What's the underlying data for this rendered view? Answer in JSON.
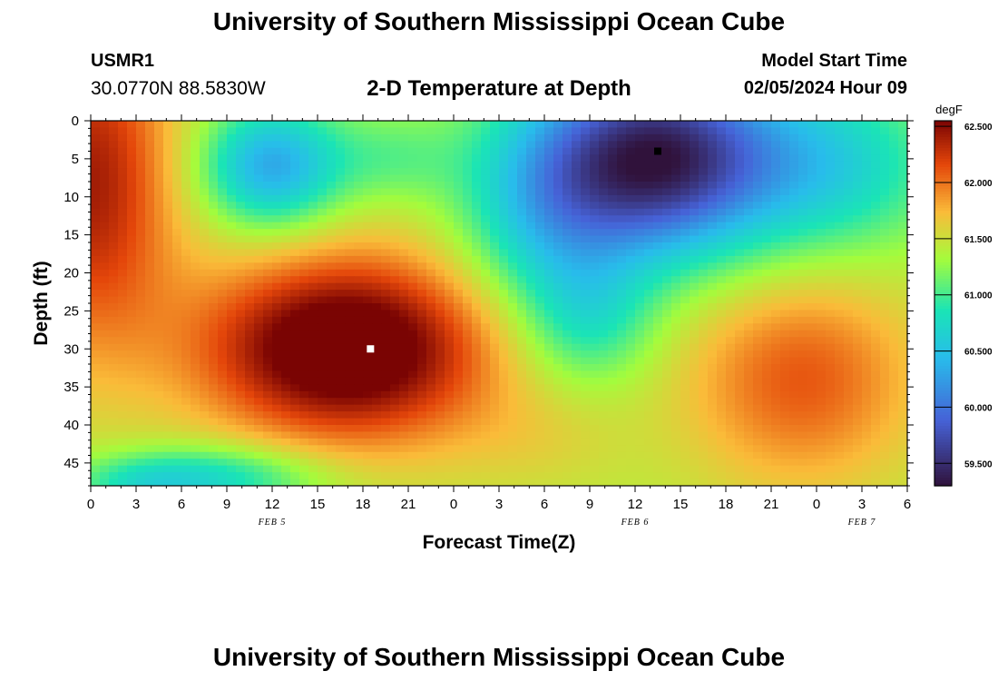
{
  "page": {
    "title": "University of Southern Mississippi Ocean Cube",
    "footer_title": "University of Southern Mississippi Ocean Cube",
    "station_id": "USMR1",
    "station_coords": "30.0770N  88.5830W",
    "plot_title": "2-D Temperature at Depth",
    "model_start_label": "Model Start Time",
    "model_start_value": "02/05/2024 Hour 09"
  },
  "colors": {
    "min": "#30123b",
    "low": "#4662d7",
    "cyan": "#1ae4b6",
    "green": "#a4fc3c",
    "yellow": "#fabb39",
    "orange": "#e4460a",
    "max": "#7a0403",
    "hot_marker": "#ffffff",
    "cold_marker": "#000000"
  },
  "chart_data": {
    "type": "heatmap",
    "title": "2-D Temperature at Depth",
    "xlabel": "Forecast Time(Z)",
    "ylabel": "Depth (ft)",
    "x_unit": "forecast hour (0 = Feb 5 00Z)",
    "xlim": [
      0,
      54
    ],
    "ylim": [
      0,
      48
    ],
    "y_inverted": true,
    "x_ticks": [
      {
        "h": 0,
        "label": "0"
      },
      {
        "h": 3,
        "label": "3"
      },
      {
        "h": 6,
        "label": "6"
      },
      {
        "h": 9,
        "label": "9"
      },
      {
        "h": 12,
        "label": "12"
      },
      {
        "h": 15,
        "label": "15"
      },
      {
        "h": 18,
        "label": "18"
      },
      {
        "h": 21,
        "label": "21"
      },
      {
        "h": 24,
        "label": "0"
      },
      {
        "h": 27,
        "label": "3"
      },
      {
        "h": 30,
        "label": "6"
      },
      {
        "h": 33,
        "label": "9"
      },
      {
        "h": 36,
        "label": "12"
      },
      {
        "h": 39,
        "label": "15"
      },
      {
        "h": 42,
        "label": "18"
      },
      {
        "h": 45,
        "label": "21"
      },
      {
        "h": 48,
        "label": "0"
      },
      {
        "h": 51,
        "label": "3"
      },
      {
        "h": 54,
        "label": "6"
      }
    ],
    "date_labels": [
      {
        "h": 12,
        "label": "FEB 5"
      },
      {
        "h": 36,
        "label": "FEB 6"
      },
      {
        "h": 51,
        "label": "FEB 7"
      }
    ],
    "y_ticks": [
      "0",
      "5",
      "10",
      "15",
      "20",
      "25",
      "30",
      "35",
      "40",
      "45"
    ],
    "y_tick_values": [
      0,
      5,
      10,
      15,
      20,
      25,
      30,
      35,
      40,
      45
    ],
    "colorbar": {
      "unit": "degF",
      "min": 59.3,
      "max": 62.55,
      "ticks": [
        "59.500",
        "60.000",
        "60.500",
        "61.000",
        "61.500",
        "62.000",
        "62.500"
      ],
      "tick_values": [
        59.5,
        60.0,
        60.5,
        61.0,
        61.5,
        62.0,
        62.5
      ]
    },
    "markers": [
      {
        "name": "max-marker",
        "h": 18.5,
        "depth": 30,
        "kind": "max"
      },
      {
        "name": "min-marker",
        "h": 37.5,
        "depth": 4,
        "kind": "min"
      }
    ],
    "baseline": 61.4,
    "field_features": [
      {
        "h": 0,
        "depth": 8,
        "amp": 1.0,
        "sh": 4,
        "sd": 16
      },
      {
        "h": 18.5,
        "depth": 30,
        "amp": 1.1,
        "sh": 6.5,
        "sd": 9
      },
      {
        "h": 13,
        "depth": 30,
        "amp": 0.5,
        "sh": 6,
        "sd": 8
      },
      {
        "h": 12,
        "depth": 6,
        "amp": -1.1,
        "sh": 3.2,
        "sd": 5.5
      },
      {
        "h": 20,
        "depth": 5,
        "amp": -0.3,
        "sh": 3,
        "sd": 4
      },
      {
        "h": 37.5,
        "depth": 5,
        "amp": -2.0,
        "sh": 5.5,
        "sd": 9
      },
      {
        "h": 30,
        "depth": 12,
        "amp": -0.7,
        "sh": 4,
        "sd": 10
      },
      {
        "h": 33,
        "depth": 26,
        "amp": -0.5,
        "sh": 3,
        "sd": 6
      },
      {
        "h": 49,
        "depth": 6,
        "amp": -0.7,
        "sh": 5,
        "sd": 8
      },
      {
        "h": 47,
        "depth": 34,
        "amp": 0.7,
        "sh": 5.5,
        "sd": 10
      },
      {
        "h": 8,
        "depth": 47,
        "amp": -0.7,
        "sh": 5,
        "sd": 3
      },
      {
        "h": 3,
        "depth": 48,
        "amp": -0.35,
        "sh": 3,
        "sd": 2.5
      },
      {
        "h": 30,
        "depth": 42,
        "amp": 0.15,
        "sh": 4,
        "sd": 5
      }
    ]
  }
}
